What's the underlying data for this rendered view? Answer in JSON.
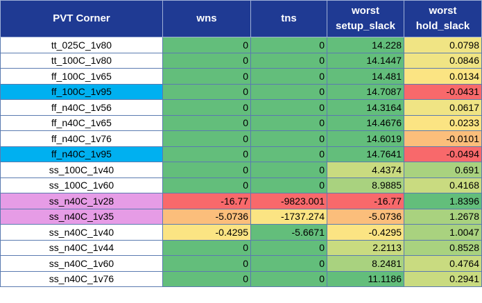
{
  "headers": [
    "PVT Corner",
    "wns",
    "tns",
    "worst setup_slack",
    "worst hold_slack"
  ],
  "header_lines": {
    "setup": [
      "worst",
      "setup_slack"
    ],
    "hold": [
      "worst",
      "hold_slack"
    ]
  },
  "colors": {
    "header_bg": "#1f3a93",
    "name_default": "#ffffff",
    "name_cyan": "#00b0f0",
    "name_violet": "#e69ce6",
    "green": "#63be7b",
    "light_green": "#a9d27f",
    "yellow_green": "#c9db80",
    "pale_yellow": "#f0e484",
    "yellow": "#fbe483",
    "orange": "#fbbe7b",
    "red": "#f8696b"
  },
  "rows": [
    {
      "corner": "tt_025C_1v80",
      "wns": "0",
      "tns": "0",
      "setup": "14.228",
      "hold": "0.0798",
      "bg": [
        "name_default",
        "green",
        "green",
        "green",
        "pale_yellow"
      ]
    },
    {
      "corner": "tt_100C_1v80",
      "wns": "0",
      "tns": "0",
      "setup": "14.1447",
      "hold": "0.0846",
      "bg": [
        "name_default",
        "green",
        "green",
        "green",
        "pale_yellow"
      ]
    },
    {
      "corner": "ff_100C_1v65",
      "wns": "0",
      "tns": "0",
      "setup": "14.481",
      "hold": "0.0134",
      "bg": [
        "name_default",
        "green",
        "green",
        "green",
        "yellow"
      ]
    },
    {
      "corner": "ff_100C_1v95",
      "wns": "0",
      "tns": "0",
      "setup": "14.7087",
      "hold": "-0.0431",
      "bg": [
        "name_cyan",
        "green",
        "green",
        "green",
        "red"
      ]
    },
    {
      "corner": "ff_n40C_1v56",
      "wns": "0",
      "tns": "0",
      "setup": "14.3164",
      "hold": "0.0617",
      "bg": [
        "name_default",
        "green",
        "green",
        "green",
        "pale_yellow"
      ]
    },
    {
      "corner": "ff_n40C_1v65",
      "wns": "0",
      "tns": "0",
      "setup": "14.4676",
      "hold": "0.0233",
      "bg": [
        "name_default",
        "green",
        "green",
        "green",
        "yellow"
      ]
    },
    {
      "corner": "ff_n40C_1v76",
      "wns": "0",
      "tns": "0",
      "setup": "14.6019",
      "hold": "-0.0101",
      "bg": [
        "name_default",
        "green",
        "green",
        "green",
        "orange"
      ]
    },
    {
      "corner": "ff_n40C_1v95",
      "wns": "0",
      "tns": "0",
      "setup": "14.7641",
      "hold": "-0.0494",
      "bg": [
        "name_cyan",
        "green",
        "green",
        "green",
        "red"
      ]
    },
    {
      "corner": "ss_100C_1v40",
      "wns": "0",
      "tns": "0",
      "setup": "4.4374",
      "hold": "0.691",
      "bg": [
        "name_default",
        "green",
        "green",
        "yellow_green",
        "light_green"
      ]
    },
    {
      "corner": "ss_100C_1v60",
      "wns": "0",
      "tns": "0",
      "setup": "8.9885",
      "hold": "0.4168",
      "bg": [
        "name_default",
        "green",
        "green",
        "light_green",
        "yellow_green"
      ]
    },
    {
      "corner": "ss_n40C_1v28",
      "wns": "-16.77",
      "tns": "-9823.001",
      "setup": "-16.77",
      "hold": "1.8396",
      "bg": [
        "name_violet",
        "red",
        "red",
        "red",
        "green"
      ]
    },
    {
      "corner": "ss_n40C_1v35",
      "wns": "-5.0736",
      "tns": "-1737.274",
      "setup": "-5.0736",
      "hold": "1.2678",
      "bg": [
        "name_violet",
        "orange",
        "yellow",
        "orange",
        "light_green"
      ]
    },
    {
      "corner": "ss_n40C_1v40",
      "wns": "-0.4295",
      "tns": "-5.6671",
      "setup": "-0.4295",
      "hold": "1.0047",
      "bg": [
        "name_default",
        "yellow",
        "green",
        "yellow",
        "light_green"
      ]
    },
    {
      "corner": "ss_n40C_1v44",
      "wns": "0",
      "tns": "0",
      "setup": "2.2113",
      "hold": "0.8528",
      "bg": [
        "name_default",
        "green",
        "green",
        "yellow_green",
        "light_green"
      ]
    },
    {
      "corner": "ss_n40C_1v60",
      "wns": "0",
      "tns": "0",
      "setup": "8.2481",
      "hold": "0.4764",
      "bg": [
        "name_default",
        "green",
        "green",
        "light_green",
        "yellow_green"
      ]
    },
    {
      "corner": "ss_n40C_1v76",
      "wns": "0",
      "tns": "0",
      "setup": "11.1186",
      "hold": "0.2941",
      "bg": [
        "name_default",
        "green",
        "green",
        "green",
        "yellow_green"
      ]
    }
  ]
}
